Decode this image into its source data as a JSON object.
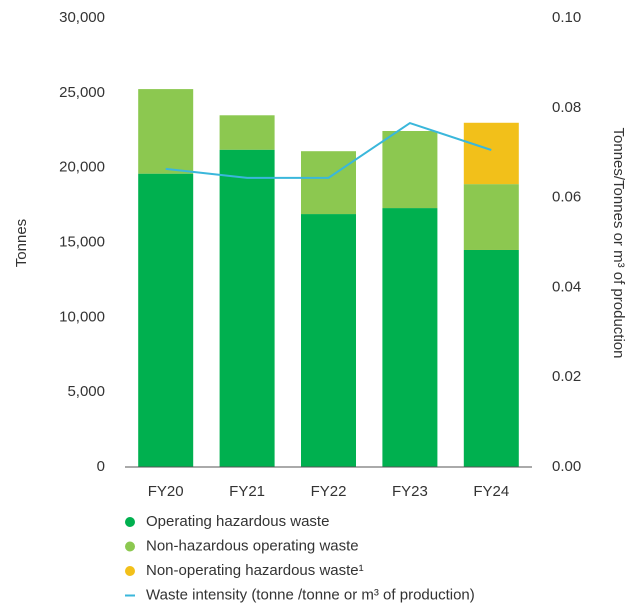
{
  "chart_data": {
    "type": "bar",
    "stacked": true,
    "categories": [
      "FY20",
      "FY21",
      "FY22",
      "FY23",
      "FY24"
    ],
    "ylabel": "Tonnes",
    "y2label": "Tonnes/Tonnes or m³ of production",
    "ylim": [
      0,
      30000
    ],
    "yticks": [
      0,
      {
        "value": 5000,
        "label": "5,000"
      },
      {
        "value": 10000,
        "label": "10,000"
      },
      {
        "value": 15000,
        "label": "15,000"
      },
      {
        "value": 20000,
        "label": "20,000"
      },
      {
        "value": 25000,
        "label": "25,000"
      },
      {
        "value": 30000,
        "label": "30,000"
      }
    ],
    "y2lim": [
      0,
      0.1
    ],
    "y2ticks": [
      {
        "value": 0,
        "label": "0.00"
      },
      0.02,
      0.04,
      0.06,
      0.08,
      {
        "value": 0.1,
        "label": "0.10"
      }
    ],
    "series": [
      {
        "name": "Operating hazardous waste",
        "color": "#00b04f",
        "values": [
          19600,
          21200,
          16900,
          17300,
          14500
        ]
      },
      {
        "name": "Non-hazardous operating waste",
        "color": "#8cc850",
        "values": [
          5650,
          2300,
          4200,
          5150,
          4400
        ]
      },
      {
        "name": "Non-operating hazardous waste¹",
        "color": "#f2c01a",
        "values": [
          0,
          0,
          0,
          0,
          4100
        ]
      },
      {
        "name": "Waste intensity (tonne /tonne or m³ of production)",
        "color": "#3ab7db",
        "type": "line",
        "axis": "y2",
        "values": [
          0.0664,
          0.0644,
          0.0644,
          0.0766,
          0.0706
        ]
      }
    ]
  }
}
